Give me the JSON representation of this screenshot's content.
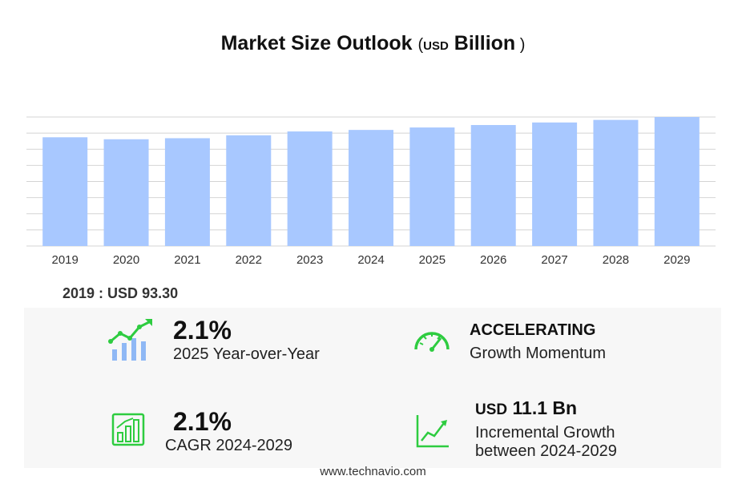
{
  "title": {
    "main": "Market Size Outlook",
    "unit_currency": "USD",
    "unit_scale": "Billion"
  },
  "chart_data": {
    "type": "bar",
    "categories": [
      "2019",
      "2020",
      "2021",
      "2022",
      "2023",
      "2024",
      "2025",
      "2026",
      "2027",
      "2028",
      "2029"
    ],
    "values": [
      93.3,
      91.6,
      92.5,
      95.0,
      98.3,
      99.6,
      101.7,
      103.8,
      106.0,
      108.2,
      110.7
    ],
    "ylim": [
      0,
      110.7
    ],
    "grid": true,
    "bar_color": "#a8c8ff"
  },
  "base": {
    "label": "2019 : USD",
    "value": "93.30"
  },
  "metrics": {
    "yoy": {
      "value": "2.1%",
      "label": "2025 Year-over-Year",
      "icon": "growth-chart-icon"
    },
    "momentum": {
      "value": "ACCELERATING",
      "label": "Growth Momentum",
      "icon": "speedometer-icon"
    },
    "cagr": {
      "value": "2.1%",
      "label": "CAGR 2024-2029",
      "icon": "bar-chart-icon"
    },
    "incremental": {
      "currency": "USD",
      "value": "11.1 Bn",
      "label_line1": "Incremental Growth",
      "label_line2": "between 2024-2029",
      "icon": "trend-line-icon"
    }
  },
  "colors": {
    "accent": "#2ecc40",
    "bar": "#a8c8ff",
    "icon_blue": "#8fb8f5"
  },
  "footer": "www.technavio.com"
}
